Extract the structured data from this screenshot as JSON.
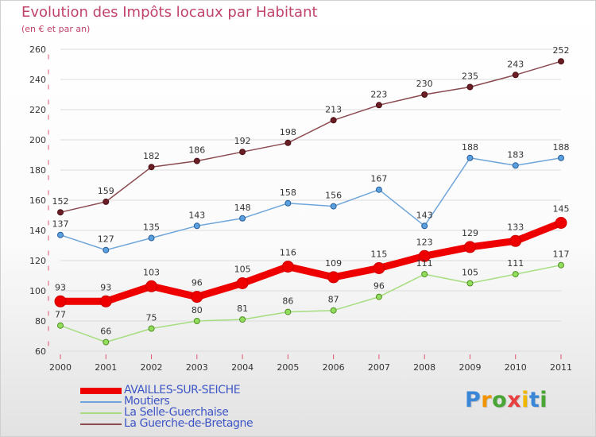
{
  "header": {
    "title": "Evolution des Impôts locaux par Habitant",
    "subtitle": "(en € et par an)"
  },
  "logo": {
    "text": "Proxiti",
    "letter_colors": [
      "#3a87d8",
      "#f29400",
      "#49a534",
      "#e83f3f",
      "#f2b705",
      "#3a87d8",
      "#49a534"
    ]
  },
  "colors": {
    "title": "#c0436a",
    "axis_text": "#333333",
    "legend_text": "#3e55c5",
    "grid": "#dcdcdc",
    "axis_tick": "#e0546e"
  },
  "chart_data": {
    "type": "line",
    "title": "Evolution des Impôts locaux par Habitant",
    "subtitle": "(en € et par an)",
    "x": [
      "2000",
      "2001",
      "2002",
      "2003",
      "2004",
      "2005",
      "2006",
      "2007",
      "2008",
      "2009",
      "2010",
      "2011"
    ],
    "ylim": [
      60,
      260
    ],
    "yticks": [
      60,
      80,
      100,
      120,
      140,
      160,
      180,
      200,
      220,
      240,
      260
    ],
    "grid": true,
    "legend_position": "bottom-left",
    "series": [
      {
        "name": "AVAILLES-SUR-SEICHE",
        "values": [
          93,
          93,
          103,
          96,
          105,
          116,
          109,
          115,
          123,
          129,
          133,
          145
        ],
        "color": "#ee0000",
        "width": 9,
        "marker_radius": 7,
        "marker_fill": "#ee0000",
        "marker_stroke": "#cc0000"
      },
      {
        "name": "Moutiers",
        "values": [
          137,
          127,
          135,
          143,
          148,
          158,
          156,
          167,
          143,
          188,
          183,
          188
        ],
        "color": "#6fa6da",
        "width": 1.5,
        "marker_radius": 3.5,
        "marker_fill": "#5aa0df",
        "marker_stroke": "#2a5e99"
      },
      {
        "name": "La Selle-Guerchaise",
        "values": [
          77,
          66,
          75,
          80,
          81,
          86,
          87,
          96,
          111,
          105,
          111,
          117
        ],
        "color": "#a6dd80",
        "width": 1.5,
        "marker_radius": 3.5,
        "marker_fill": "#93dd5d",
        "marker_stroke": "#4f8e24"
      },
      {
        "name": "La Guerche-de-Bretagne",
        "values": [
          152,
          159,
          182,
          186,
          192,
          198,
          213,
          223,
          230,
          235,
          243,
          252
        ],
        "color": "#8a4a50",
        "width": 1.5,
        "marker_radius": 3.5,
        "marker_fill": "#6b1e25",
        "marker_stroke": "#4a1014"
      }
    ]
  }
}
